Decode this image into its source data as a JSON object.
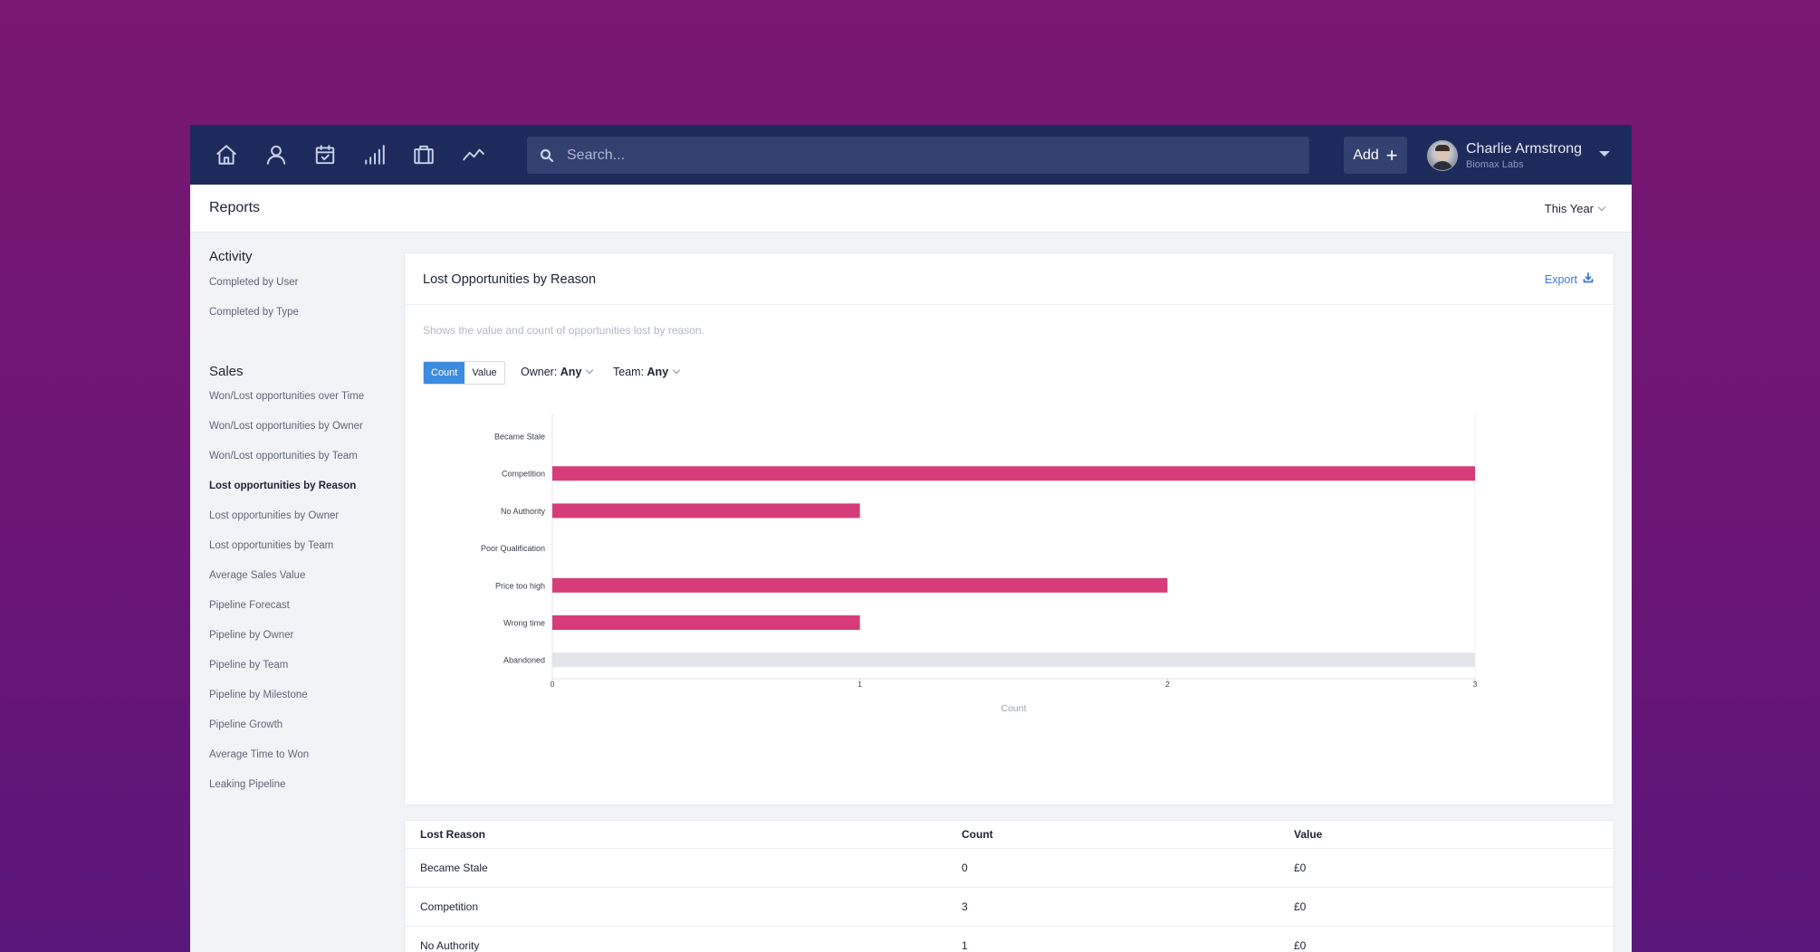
{
  "nav": {
    "icons": [
      "home-icon",
      "person-icon",
      "calendar-icon",
      "signal-bars-icon",
      "briefcase-icon",
      "trend-line-icon"
    ]
  },
  "search": {
    "placeholder": "Search..."
  },
  "header_actions": {
    "add_label": "Add",
    "add_icon": "plus-icon"
  },
  "user": {
    "name": "Charlie Armstrong",
    "company": "Biomax Labs"
  },
  "page": {
    "title": "Reports",
    "period": "This Year"
  },
  "sidebar": {
    "activity_heading": "Activity",
    "activity_items": [
      "Completed by User",
      "Completed by Type"
    ],
    "sales_heading": "Sales",
    "sales_items": [
      "Won/Lost opportunities over Time",
      "Won/Lost opportunities by Owner",
      "Won/Lost opportunities by Team",
      "Lost opportunities by Reason",
      "Lost opportunities by Owner",
      "Lost opportunities by Team",
      "Average Sales Value",
      "Pipeline Forecast",
      "Pipeline by Owner",
      "Pipeline by Team",
      "Pipeline by Milestone",
      "Pipeline Growth",
      "Average Time to Won",
      "Leaking Pipeline"
    ],
    "active_item": "Lost opportunities by Reason"
  },
  "report": {
    "title": "Lost Opportunities by Reason",
    "export_label": "Export",
    "description": "Shows the value and count of opportunities lost by reason.",
    "toggle": {
      "count": "Count",
      "value": "Value",
      "selected": "Count"
    },
    "owner_filter": {
      "label": "Owner:",
      "value": "Any"
    },
    "team_filter": {
      "label": "Team:",
      "value": "Any"
    }
  },
  "chart_data": {
    "type": "bar",
    "orientation": "horizontal",
    "categories": [
      "Became Stale",
      "Competition",
      "No Authority",
      "Poor Qualification",
      "Price too high",
      "Wrong time",
      "Abandoned"
    ],
    "values": [
      0,
      3,
      1,
      0,
      2,
      1,
      3
    ],
    "bar_colors": [
      "#d63c7a",
      "#d63c7a",
      "#d63c7a",
      "#d63c7a",
      "#d63c7a",
      "#d63c7a",
      "#e4e5ea"
    ],
    "xlabel": "Count",
    "xlim": [
      0,
      3
    ],
    "xticks": [
      0,
      1,
      2,
      3
    ]
  },
  "table": {
    "headers": [
      "Lost Reason",
      "Count",
      "Value"
    ],
    "rows": [
      [
        "Became Stale",
        "0",
        "£0"
      ],
      [
        "Competition",
        "3",
        "£0"
      ],
      [
        "No Authority",
        "1",
        "£0"
      ]
    ]
  },
  "colors": {
    "navbar": "#1c2b5c",
    "accent": "#3d8bdf",
    "bar": "#d63c7a",
    "link": "#3a7bd5"
  }
}
